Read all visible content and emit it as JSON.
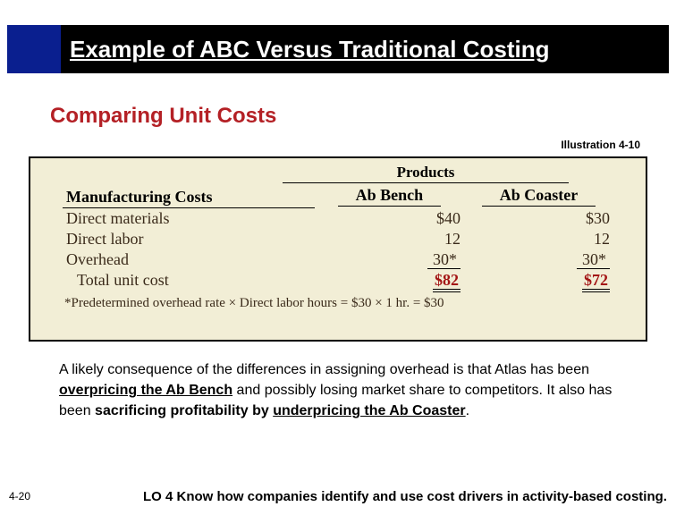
{
  "title": "Example of ABC Versus Traditional Costing",
  "subtitle": "Comparing Unit Costs",
  "illustration_label": "Illustration 4-10",
  "table": {
    "products_header": "Products",
    "mfg_header": "Manufacturing Costs",
    "col_a": "Ab Bench",
    "col_b": "Ab Coaster",
    "rows": {
      "dm": {
        "label": "Direct materials",
        "a": "$40",
        "b": "$30"
      },
      "dl": {
        "label": "Direct labor",
        "a": "12",
        "b": "12"
      },
      "oh": {
        "label": "Overhead",
        "a": "30*",
        "b": "30*"
      }
    },
    "total": {
      "label": "Total unit cost",
      "a": "$82",
      "b": "$72"
    },
    "footnote": "*Predetermined overhead rate × Direct labor hours = $30 × 1 hr. = $30"
  },
  "consequence": {
    "p1a": "A likely consequence of the differences in assigning overhead is that Atlas has been ",
    "p1b": "overpricing the Ab Bench",
    "p1c": " and possibly losing market share to competitors.  It also has been ",
    "p1d": "sacrificing profitability by ",
    "p1e": "underpricing the Ab Coaster",
    "p1f": "."
  },
  "page_num": "4-20",
  "lo": "LO 4  Know how companies identify and use cost drivers in activity-based costing."
}
